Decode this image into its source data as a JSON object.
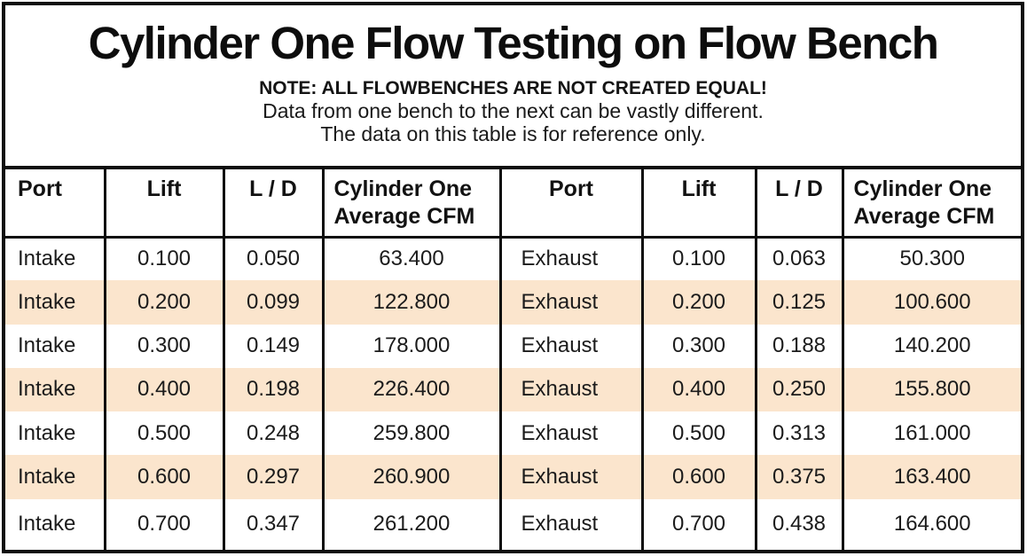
{
  "title": "Cylinder One Flow Testing on Flow Bench",
  "note": {
    "line1": "NOTE: ALL FLOWBENCHES ARE NOT CREATED EQUAL!",
    "line2": "Data from one bench to the next can be vastly different.",
    "line3": "The data on this table is for reference only."
  },
  "table": {
    "headers": [
      "Port",
      "Lift",
      "L / D",
      "Cylinder One Average CFM",
      "Port",
      "Lift",
      "L / D",
      "Cylinder One Average CFM"
    ],
    "rows": [
      [
        "Intake",
        "0.100",
        "0.050",
        "63.400",
        "Exhaust",
        "0.100",
        "0.063",
        "50.300"
      ],
      [
        "Intake",
        "0.200",
        "0.099",
        "122.800",
        "Exhaust",
        "0.200",
        "0.125",
        "100.600"
      ],
      [
        "Intake",
        "0.300",
        "0.149",
        "178.000",
        "Exhaust",
        "0.300",
        "0.188",
        "140.200"
      ],
      [
        "Intake",
        "0.400",
        "0.198",
        "226.400",
        "Exhaust",
        "0.400",
        "0.250",
        "155.800"
      ],
      [
        "Intake",
        "0.500",
        "0.248",
        "259.800",
        "Exhaust",
        "0.500",
        "0.313",
        "161.000"
      ],
      [
        "Intake",
        "0.600",
        "0.297",
        "260.900",
        "Exhaust",
        "0.600",
        "0.375",
        "163.400"
      ],
      [
        "Intake",
        "0.700",
        "0.347",
        "261.200",
        "Exhaust",
        "0.700",
        "0.438",
        "164.600"
      ]
    ],
    "stripe_color": "#fbe5cd",
    "border_color": "#0e0e0e"
  },
  "chart_data": {
    "type": "table",
    "title": "Cylinder One Flow Testing on Flow Bench",
    "notes": [
      "NOTE: ALL FLOWBENCHES ARE NOT CREATED EQUAL!",
      "Data from one bench to the next can be vastly different.",
      "The data on this table is for reference only."
    ],
    "columns": [
      "Port",
      "Lift",
      "L / D",
      "Cylinder One Average CFM"
    ],
    "series": [
      {
        "name": "Intake",
        "lift": [
          0.1,
          0.2,
          0.3,
          0.4,
          0.5,
          0.6,
          0.7
        ],
        "l_over_d": [
          0.05,
          0.099,
          0.149,
          0.198,
          0.248,
          0.297,
          0.347
        ],
        "average_cfm": [
          63.4,
          122.8,
          178.0,
          226.4,
          259.8,
          260.9,
          261.2
        ]
      },
      {
        "name": "Exhaust",
        "lift": [
          0.1,
          0.2,
          0.3,
          0.4,
          0.5,
          0.6,
          0.7
        ],
        "l_over_d": [
          0.063,
          0.125,
          0.188,
          0.25,
          0.313,
          0.375,
          0.438
        ],
        "average_cfm": [
          50.3,
          100.6,
          140.2,
          155.8,
          161.0,
          163.4,
          164.6
        ]
      }
    ]
  }
}
